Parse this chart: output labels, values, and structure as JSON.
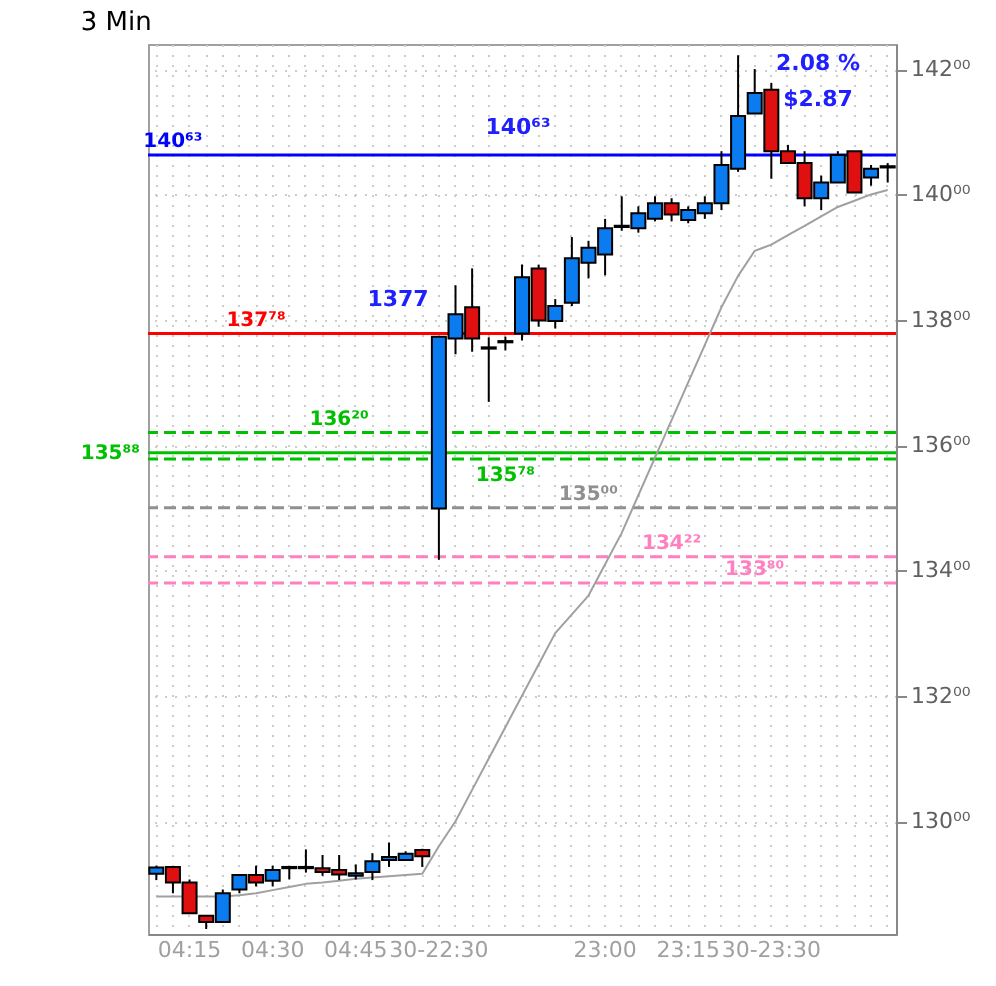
{
  "chart_data": {
    "type": "candlestick",
    "title": "3 Min",
    "categories": [
      null,
      null,
      "04:15",
      null,
      null,
      null,
      null,
      "04:30",
      null,
      null,
      null,
      null,
      "04:45",
      null,
      null,
      null,
      null,
      "30-22:30",
      null,
      null,
      null,
      null,
      null,
      null,
      null,
      null,
      null,
      "23:00",
      null,
      null,
      null,
      null,
      "23:15",
      null,
      null,
      null,
      null,
      "30-23:30",
      null,
      null,
      null,
      null,
      null,
      null,
      null
    ],
    "ohlc": [
      [
        129.16,
        129.29,
        129.06,
        129.26
      ],
      [
        129.27,
        129.27,
        128.85,
        129.02
      ],
      [
        129.02,
        129.07,
        128.53,
        128.53
      ],
      [
        128.49,
        128.49,
        128.28,
        128.39
      ],
      [
        128.39,
        128.91,
        128.39,
        128.85
      ],
      [
        128.91,
        129.14,
        128.85,
        129.14
      ],
      [
        129.14,
        129.29,
        128.96,
        129.02
      ],
      [
        129.05,
        129.29,
        128.96,
        129.22
      ],
      [
        129.25,
        129.27,
        129.07,
        129.27
      ],
      [
        129.27,
        129.55,
        129.18,
        129.25
      ],
      [
        129.25,
        129.46,
        129.13,
        129.19
      ],
      [
        129.22,
        129.46,
        129.06,
        129.15
      ],
      [
        129.13,
        129.31,
        129.07,
        129.17
      ],
      [
        129.19,
        129.49,
        129.06,
        129.36
      ],
      [
        129.38,
        129.66,
        129.27,
        129.43
      ],
      [
        129.38,
        129.52,
        129.38,
        129.48
      ],
      [
        129.54,
        129.56,
        129.27,
        129.44
      ],
      [
        134.99,
        137.73,
        134.17,
        137.73
      ],
      [
        137.7,
        138.55,
        137.45,
        138.09
      ],
      [
        138.2,
        138.82,
        137.49,
        137.7
      ],
      [
        137.54,
        137.72,
        136.69,
        137.56
      ],
      [
        137.64,
        137.73,
        137.51,
        137.66
      ],
      [
        137.78,
        138.88,
        137.67,
        138.68
      ],
      [
        138.82,
        138.88,
        137.89,
        137.99
      ],
      [
        137.98,
        138.33,
        137.86,
        138.22
      ],
      [
        138.27,
        139.32,
        138.22,
        138.98
      ],
      [
        138.91,
        139.26,
        138.66,
        139.15
      ],
      [
        139.04,
        139.61,
        138.71,
        139.46
      ],
      [
        139.5,
        139.97,
        139.42,
        139.48
      ],
      [
        139.46,
        139.81,
        139.39,
        139.7
      ],
      [
        139.61,
        139.97,
        139.57,
        139.86
      ],
      [
        139.86,
        139.94,
        139.57,
        139.68
      ],
      [
        139.59,
        139.81,
        139.54,
        139.75
      ],
      [
        139.7,
        139.97,
        139.61,
        139.86
      ],
      [
        139.86,
        140.69,
        139.75,
        140.47
      ],
      [
        140.41,
        142.22,
        140.36,
        141.25
      ],
      [
        141.29,
        142.0,
        141.29,
        141.62
      ],
      [
        141.67,
        141.78,
        140.25,
        140.69
      ],
      [
        140.69,
        140.79,
        140.5,
        140.5
      ],
      [
        140.5,
        140.69,
        139.81,
        139.94
      ],
      [
        139.94,
        140.3,
        139.75,
        140.19
      ],
      [
        140.19,
        140.69,
        140.19,
        140.63
      ],
      [
        140.69,
        140.69,
        140.03,
        140.03
      ],
      [
        140.27,
        140.47,
        140.14,
        140.41
      ],
      [
        140.43,
        140.5,
        140.19,
        140.45
      ]
    ],
    "colors": [
      "#0a7cf0",
      "#e01010",
      "#e01010",
      "#e01010",
      "#0a7cf0",
      "#0a7cf0",
      "#e01010",
      "#0a7cf0",
      "#0a7cf0",
      "#e01010",
      "#e01010",
      "#e01010",
      "#0a7cf0",
      "#0a7cf0",
      "#0a7cf0",
      "#0a7cf0",
      "#e01010",
      "#0a7cf0",
      "#0a7cf0",
      "#e01010",
      "#0a7cf0",
      "#0a7cf0",
      "#0a7cf0",
      "#e01010",
      "#0a7cf0",
      "#0a7cf0",
      "#0a7cf0",
      "#0a7cf0",
      "#e01010",
      "#0a7cf0",
      "#0a7cf0",
      "#e01010",
      "#0a7cf0",
      "#0a7cf0",
      "#0a7cf0",
      "#0a7cf0",
      "#0a7cf0",
      "#e01010",
      "#e01010",
      "#e01010",
      "#0a7cf0",
      "#0a7cf0",
      "#e01010",
      "#0a7cf0",
      "#0a7cf0"
    ],
    "series": [
      {
        "type": "line",
        "color": "#a0a0a0",
        "values": [
          128.8,
          128.8,
          128.8,
          128.8,
          128.8,
          128.82,
          128.85,
          128.9,
          128.95,
          129.0,
          129.02,
          129.05,
          129.08,
          129.1,
          129.12,
          129.14,
          129.16,
          129.6,
          130.0,
          130.5,
          131.0,
          131.5,
          132.0,
          132.5,
          133.0,
          133.3,
          133.6,
          134.1,
          134.6,
          135.2,
          135.8,
          136.4,
          137.0,
          137.6,
          138.2,
          138.7,
          139.1,
          139.2,
          139.35,
          139.5,
          139.65,
          139.8,
          139.9,
          140.0,
          140.07
        ]
      }
    ],
    "ylim": [
      128.2,
      142.4
    ],
    "yticks": [
      {
        "value": 130,
        "label": "130⁰⁰"
      },
      {
        "value": 132,
        "label": "132⁰⁰"
      },
      {
        "value": 134,
        "label": "134⁰⁰"
      },
      {
        "value": 136,
        "label": "136⁰⁰"
      },
      {
        "value": 138,
        "label": "138⁰⁰"
      },
      {
        "value": 140,
        "label": "140⁰⁰"
      },
      {
        "value": 142,
        "label": "142⁰⁰"
      }
    ],
    "grid": true,
    "ref_lines": [
      {
        "axis": "y",
        "value": 140.63,
        "label": "140⁶³",
        "color": "#0000ff",
        "line_style": "solid"
      },
      {
        "axis": "y",
        "value": 137.78,
        "label": "137⁷⁸",
        "color": "#ff0000",
        "line_style": "solid"
      },
      {
        "axis": "y",
        "value": 136.2,
        "label": "136²⁰",
        "color": "#00c000",
        "line_style": "dashed"
      },
      {
        "axis": "y",
        "value": 135.88,
        "label": "135⁸⁸",
        "color": "#00c000",
        "line_style": "solid"
      },
      {
        "axis": "y",
        "value": 135.78,
        "label": "135⁷⁸",
        "color": "#00c000",
        "line_style": "dashed"
      },
      {
        "axis": "y",
        "value": 135.0,
        "label": "135⁰⁰",
        "color": "#909090",
        "line_style": "dashed"
      },
      {
        "axis": "y",
        "value": 134.22,
        "label": "134²²",
        "color": "#ff80c0",
        "line_style": "dashed"
      },
      {
        "axis": "y",
        "value": 133.8,
        "label": "133⁸⁰",
        "color": "#ff80c0",
        "line_style": "dashed"
      }
    ],
    "annotations": [
      "$2.87",
      "2.08 %",
      "140⁶³",
      "1377"
    ]
  }
}
